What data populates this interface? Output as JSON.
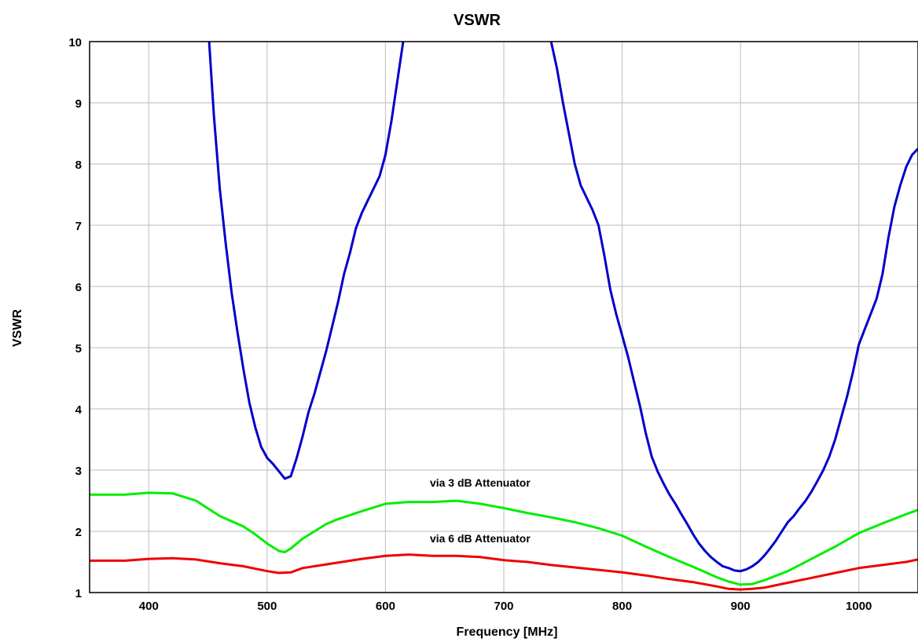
{
  "chart_data": {
    "type": "line",
    "title": "VSWR",
    "xlabel": "Frequency [MHz]",
    "ylabel": "VSWR",
    "xlim": [
      350,
      1050
    ],
    "ylim": [
      1,
      10
    ],
    "xticks": [
      400,
      500,
      600,
      700,
      800,
      900,
      1000
    ],
    "yticks": [
      1,
      2,
      3,
      4,
      5,
      6,
      7,
      8,
      9,
      10
    ],
    "grid": true,
    "series": [
      {
        "color": "#0000cc",
        "x": [
          451,
          455,
          460,
          465,
          470,
          475,
          480,
          485,
          490,
          495,
          500,
          505,
          510,
          515,
          520,
          525,
          530,
          535,
          540,
          545,
          550,
          555,
          560,
          565,
          570,
          575,
          580,
          585,
          590,
          595,
          600,
          605,
          610,
          615,
          740,
          745,
          750,
          755,
          760,
          765,
          770,
          775,
          780,
          785,
          790,
          795,
          800,
          805,
          810,
          815,
          820,
          825,
          830,
          835,
          840,
          845,
          850,
          855,
          860,
          865,
          870,
          875,
          880,
          885,
          890,
          895,
          900,
          905,
          910,
          915,
          920,
          925,
          930,
          935,
          940,
          945,
          950,
          955,
          960,
          965,
          970,
          975,
          980,
          985,
          990,
          995,
          1000,
          1005,
          1010,
          1015,
          1020,
          1025,
          1030,
          1035,
          1040,
          1045,
          1050
        ],
        "y": [
          10.0,
          8.8,
          7.6,
          6.7,
          5.9,
          5.25,
          4.65,
          4.1,
          3.7,
          3.38,
          3.2,
          3.1,
          2.98,
          2.86,
          2.9,
          3.2,
          3.55,
          3.95,
          4.25,
          4.6,
          4.95,
          5.35,
          5.75,
          6.2,
          6.55,
          6.95,
          7.2,
          7.4,
          7.6,
          7.8,
          8.15,
          8.7,
          9.35,
          10.0,
          10.0,
          9.55,
          9.0,
          8.5,
          8.0,
          7.65,
          7.45,
          7.25,
          7.0,
          6.5,
          5.95,
          5.55,
          5.2,
          4.85,
          4.45,
          4.05,
          3.6,
          3.22,
          2.98,
          2.78,
          2.6,
          2.45,
          2.28,
          2.12,
          1.95,
          1.8,
          1.68,
          1.58,
          1.5,
          1.43,
          1.4,
          1.36,
          1.35,
          1.38,
          1.43,
          1.5,
          1.6,
          1.72,
          1.85,
          2.0,
          2.15,
          2.25,
          2.38,
          2.5,
          2.65,
          2.82,
          3.0,
          3.22,
          3.5,
          3.85,
          4.2,
          4.6,
          5.05,
          5.3,
          5.55,
          5.8,
          6.2,
          6.8,
          7.3,
          7.65,
          7.95,
          8.15,
          8.25
        ]
      },
      {
        "name": "via 3 dB Attenuator",
        "color": "#00ee00",
        "x": [
          350,
          380,
          400,
          420,
          440,
          460,
          480,
          490,
          500,
          510,
          515,
          520,
          530,
          540,
          550,
          560,
          580,
          600,
          620,
          640,
          660,
          680,
          700,
          720,
          740,
          760,
          780,
          800,
          820,
          840,
          860,
          880,
          890,
          900,
          910,
          920,
          940,
          960,
          980,
          1000,
          1020,
          1040,
          1050
        ],
        "y": [
          2.6,
          2.6,
          2.63,
          2.62,
          2.5,
          2.25,
          2.08,
          1.95,
          1.8,
          1.68,
          1.66,
          1.72,
          1.88,
          2.0,
          2.12,
          2.2,
          2.33,
          2.45,
          2.48,
          2.48,
          2.5,
          2.45,
          2.38,
          2.3,
          2.23,
          2.15,
          2.05,
          1.93,
          1.75,
          1.58,
          1.42,
          1.25,
          1.18,
          1.13,
          1.14,
          1.2,
          1.35,
          1.55,
          1.75,
          1.97,
          2.13,
          2.28,
          2.35
        ]
      },
      {
        "name": "via 6 dB Attenuator",
        "color": "#ee0000",
        "x": [
          350,
          380,
          400,
          420,
          440,
          460,
          480,
          500,
          510,
          520,
          530,
          550,
          580,
          600,
          620,
          640,
          660,
          680,
          700,
          720,
          740,
          760,
          780,
          800,
          820,
          840,
          860,
          880,
          890,
          900,
          910,
          920,
          940,
          960,
          980,
          1000,
          1020,
          1040,
          1050
        ],
        "y": [
          1.52,
          1.52,
          1.55,
          1.56,
          1.54,
          1.48,
          1.43,
          1.35,
          1.32,
          1.33,
          1.4,
          1.46,
          1.55,
          1.6,
          1.62,
          1.6,
          1.6,
          1.58,
          1.53,
          1.5,
          1.45,
          1.41,
          1.37,
          1.33,
          1.28,
          1.22,
          1.17,
          1.1,
          1.06,
          1.05,
          1.06,
          1.08,
          1.16,
          1.24,
          1.32,
          1.4,
          1.45,
          1.5,
          1.54
        ]
      }
    ],
    "annotations": [
      {
        "text": "via 3 dB Attenuator",
        "x": 680,
        "y": 2.73
      },
      {
        "text": "via 6 dB Attenuator",
        "x": 680,
        "y": 1.82
      }
    ]
  }
}
